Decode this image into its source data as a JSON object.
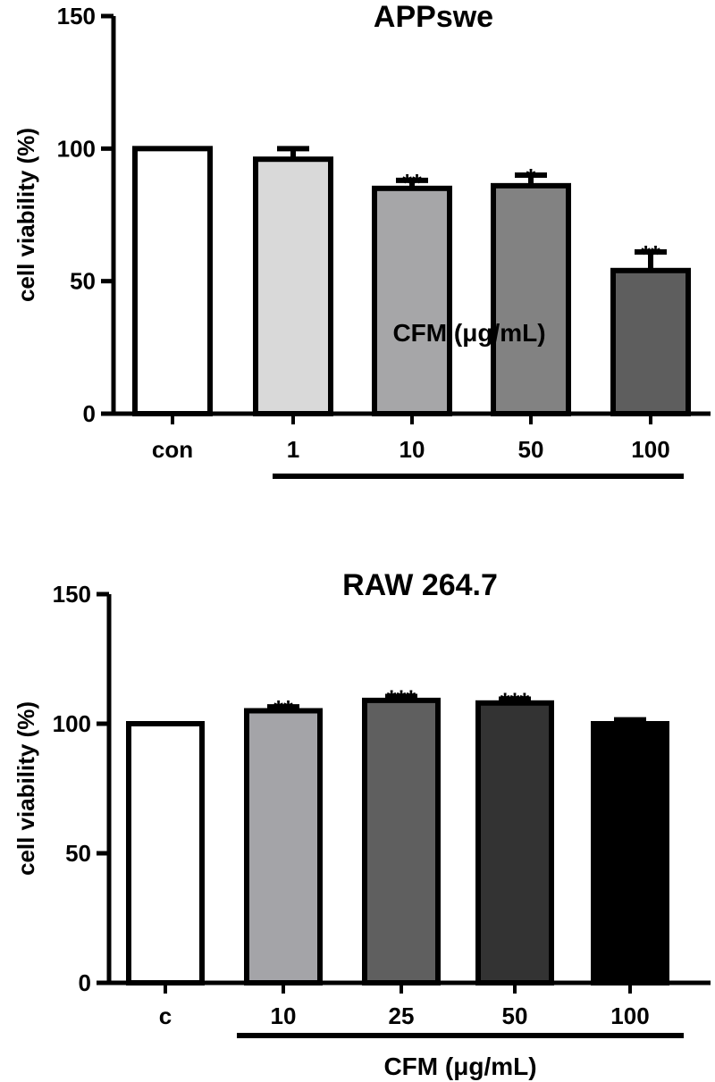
{
  "chart_data": [
    {
      "type": "bar",
      "title": "APPswe",
      "ylabel": "cell viability (%)",
      "ylim": [
        0,
        150
      ],
      "yticks": [
        0,
        50,
        100,
        150
      ],
      "categories": [
        "con",
        "1",
        "10",
        "50",
        "100"
      ],
      "values": [
        100,
        96,
        85,
        86,
        54
      ],
      "errors": [
        0,
        4,
        3,
        4,
        7
      ],
      "significance": [
        "",
        "",
        "**",
        "*",
        "**"
      ],
      "colors": [
        "#ffffff",
        "#d9d9d9",
        "#a6a6a8",
        "#828282",
        "#5e5e5e"
      ],
      "group_label": "CFM (μg/mL)",
      "group_span": [
        "1",
        "100"
      ]
    },
    {
      "type": "bar",
      "title": "RAW 264.7",
      "ylabel": "cell viability (%)",
      "ylim": [
        0,
        150
      ],
      "yticks": [
        0,
        50,
        100,
        150
      ],
      "categories": [
        "c",
        "10",
        "25",
        "50",
        "100"
      ],
      "values": [
        100,
        105,
        109,
        108,
        100
      ],
      "errors": [
        0,
        1.5,
        1.5,
        1.5,
        1.5
      ],
      "significance": [
        "",
        "**",
        "***",
        "***",
        ""
      ],
      "colors": [
        "#ffffff",
        "#a4a4a8",
        "#5f5f5f",
        "#333333",
        "#000000"
      ],
      "group_label": "CFM (μg/mL)",
      "group_span": [
        "10",
        "100"
      ]
    }
  ]
}
